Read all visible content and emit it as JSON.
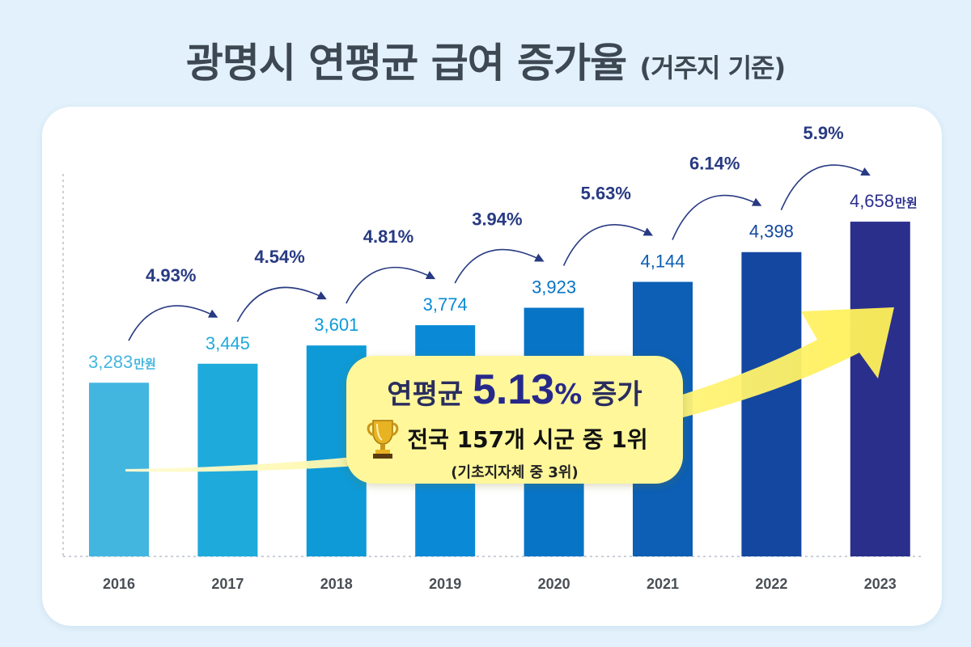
{
  "title": {
    "main": "광명시 연평균 급여 증가율",
    "sub": "(거주지 기준)"
  },
  "callout": {
    "prefix": "연평균",
    "value": "5.13",
    "percent": "%",
    "suffix": "증가",
    "rank": "전국 157개 시군 중 1위",
    "rank_sub": "(기초지자체 중 3위)",
    "icon": "trophy-icon"
  },
  "colors": {
    "bars": [
      "#43b6e0",
      "#1faadc",
      "#0e9ad7",
      "#0a8ad6",
      "#0874c6",
      "#0c5fb4",
      "#1447a0",
      "#2b2f8c"
    ],
    "bar_labels": [
      "#43b6e0",
      "#1faadc",
      "#0e9ad7",
      "#0a8ad6",
      "#0874c6",
      "#0c5fb4",
      "#1447a0",
      "#2b2f8c"
    ],
    "rate": "#283a82",
    "callout_bg": "#fff79a",
    "arrow": "#fff47a"
  },
  "chart_data": {
    "type": "bar",
    "title": "광명시 연평균 급여 증가율",
    "categories": [
      "2016",
      "2017",
      "2018",
      "2019",
      "2020",
      "2021",
      "2022",
      "2023"
    ],
    "values": [
      3283,
      3445,
      3601,
      3774,
      3923,
      4144,
      4398,
      4658
    ],
    "value_labels": [
      "3,283",
      "3,445",
      "3,601",
      "3,774",
      "3,923",
      "4,144",
      "4,398",
      "4,658"
    ],
    "unit": "만원",
    "growth_rates": [
      "4.93%",
      "4.54%",
      "4.81%",
      "3.94%",
      "5.63%",
      "6.14%",
      "5.9%"
    ],
    "ylim": [
      1800,
      4700
    ],
    "grid": false
  }
}
